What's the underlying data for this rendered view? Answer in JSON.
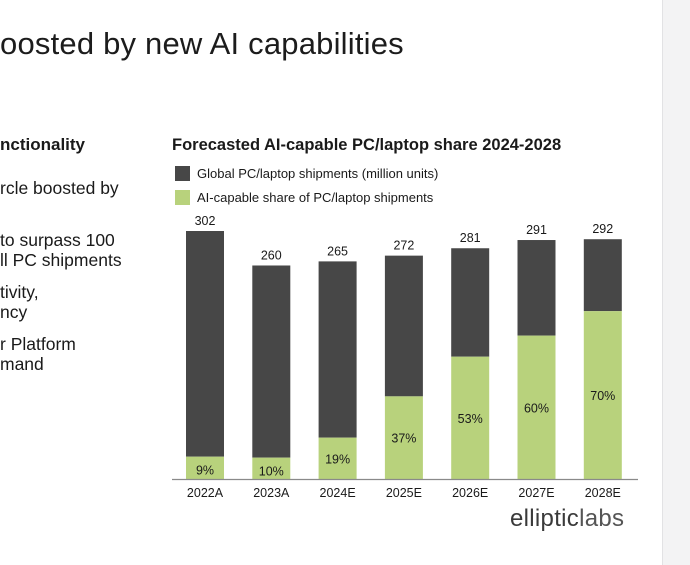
{
  "slide": {
    "title": "oosted by new AI capabilities"
  },
  "left": {
    "heading": "nctionality",
    "bullets": [
      [
        "rcle boosted by"
      ],
      [
        "to surpass 100",
        "ll PC shipments"
      ],
      [
        "tivity,",
        "ncy"
      ],
      [
        "r Platform",
        "mand"
      ]
    ]
  },
  "brand": {
    "part1": "elliptic",
    "part2": "labs"
  },
  "chart_data": {
    "type": "bar",
    "title": "Forecasted AI-capable PC/laptop share 2024-2028",
    "categories": [
      "2022A",
      "2023A",
      "2024E",
      "2025E",
      "2026E",
      "2027E",
      "2028E"
    ],
    "series": [
      {
        "name": "Global PC/laptop shipments (million units)",
        "values": [
          302,
          260,
          265,
          272,
          281,
          291,
          292
        ],
        "color": "#474747"
      },
      {
        "name": "AI-capable share of PC/laptop shipments",
        "values": [
          9,
          10,
          19,
          37,
          53,
          60,
          70
        ],
        "unit": "%",
        "color": "#b8d27c"
      }
    ],
    "total_labels": [
      "302",
      "260",
      "265",
      "272",
      "281",
      "291",
      "292"
    ],
    "share_labels": [
      "9%",
      "10%",
      "19%",
      "37%",
      "53%",
      "60%",
      "70%"
    ],
    "xlabel": "",
    "ylabel": "",
    "grid": false,
    "legend": "top-left"
  }
}
